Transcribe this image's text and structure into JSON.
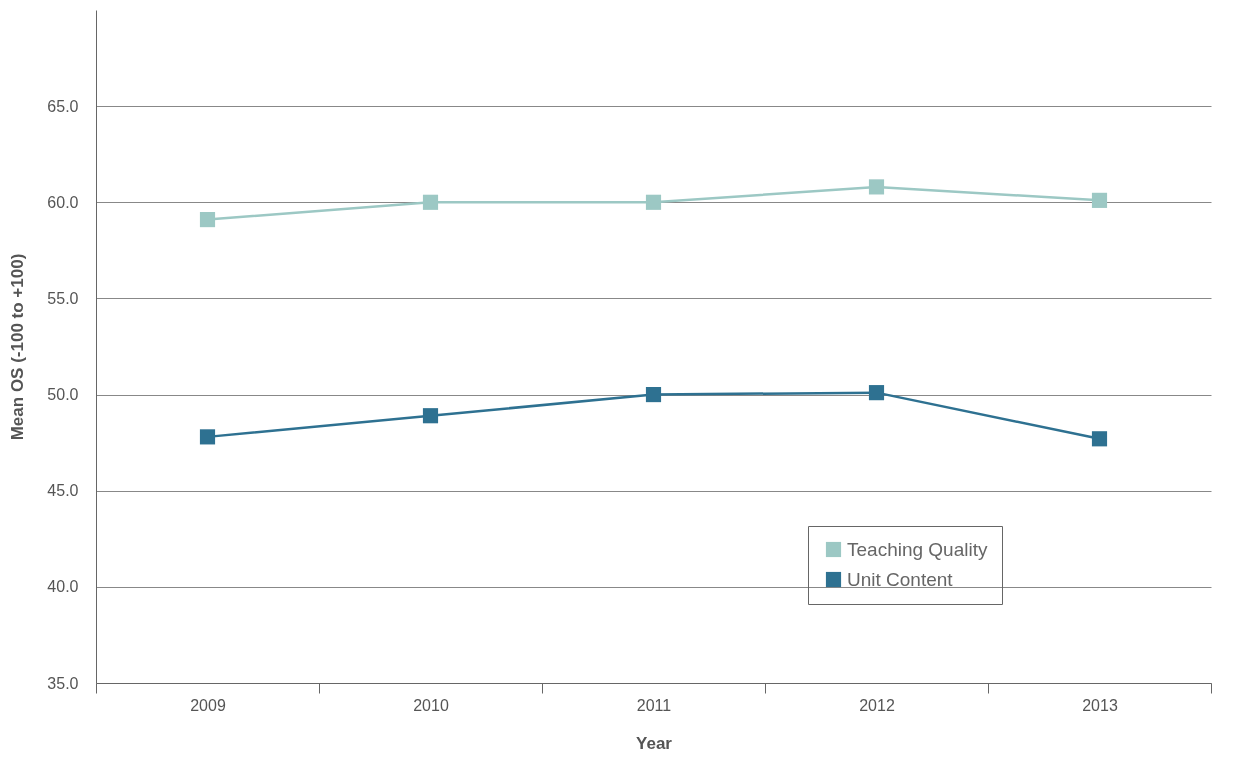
{
  "chart_data": {
    "type": "line",
    "xlabel": "Year",
    "ylabel": "Mean OS (-100 to +100)",
    "categories": [
      "2009",
      "2010",
      "2011",
      "2012",
      "2013"
    ],
    "series": [
      {
        "name": "Teaching Quality",
        "color": "#9cc8c4",
        "values": [
          59.1,
          60.0,
          60.0,
          60.8,
          60.1
        ]
      },
      {
        "name": "Unit Content",
        "color": "#2e7191",
        "values": [
          47.8,
          48.9,
          50.0,
          50.1,
          47.7
        ]
      }
    ],
    "ylim": [
      35,
      70
    ],
    "yticks": [
      {
        "value": 35,
        "label": "35.0"
      },
      {
        "value": 40,
        "label": "40.0"
      },
      {
        "value": 45,
        "label": "45.0"
      },
      {
        "value": 50,
        "label": "50.0"
      },
      {
        "value": 55,
        "label": "55.0"
      },
      {
        "value": 60,
        "label": "60.0"
      },
      {
        "value": 65,
        "label": "65.0"
      }
    ],
    "grid": "y",
    "legend": "bottom right",
    "marker": "square",
    "line_style": "solid"
  }
}
